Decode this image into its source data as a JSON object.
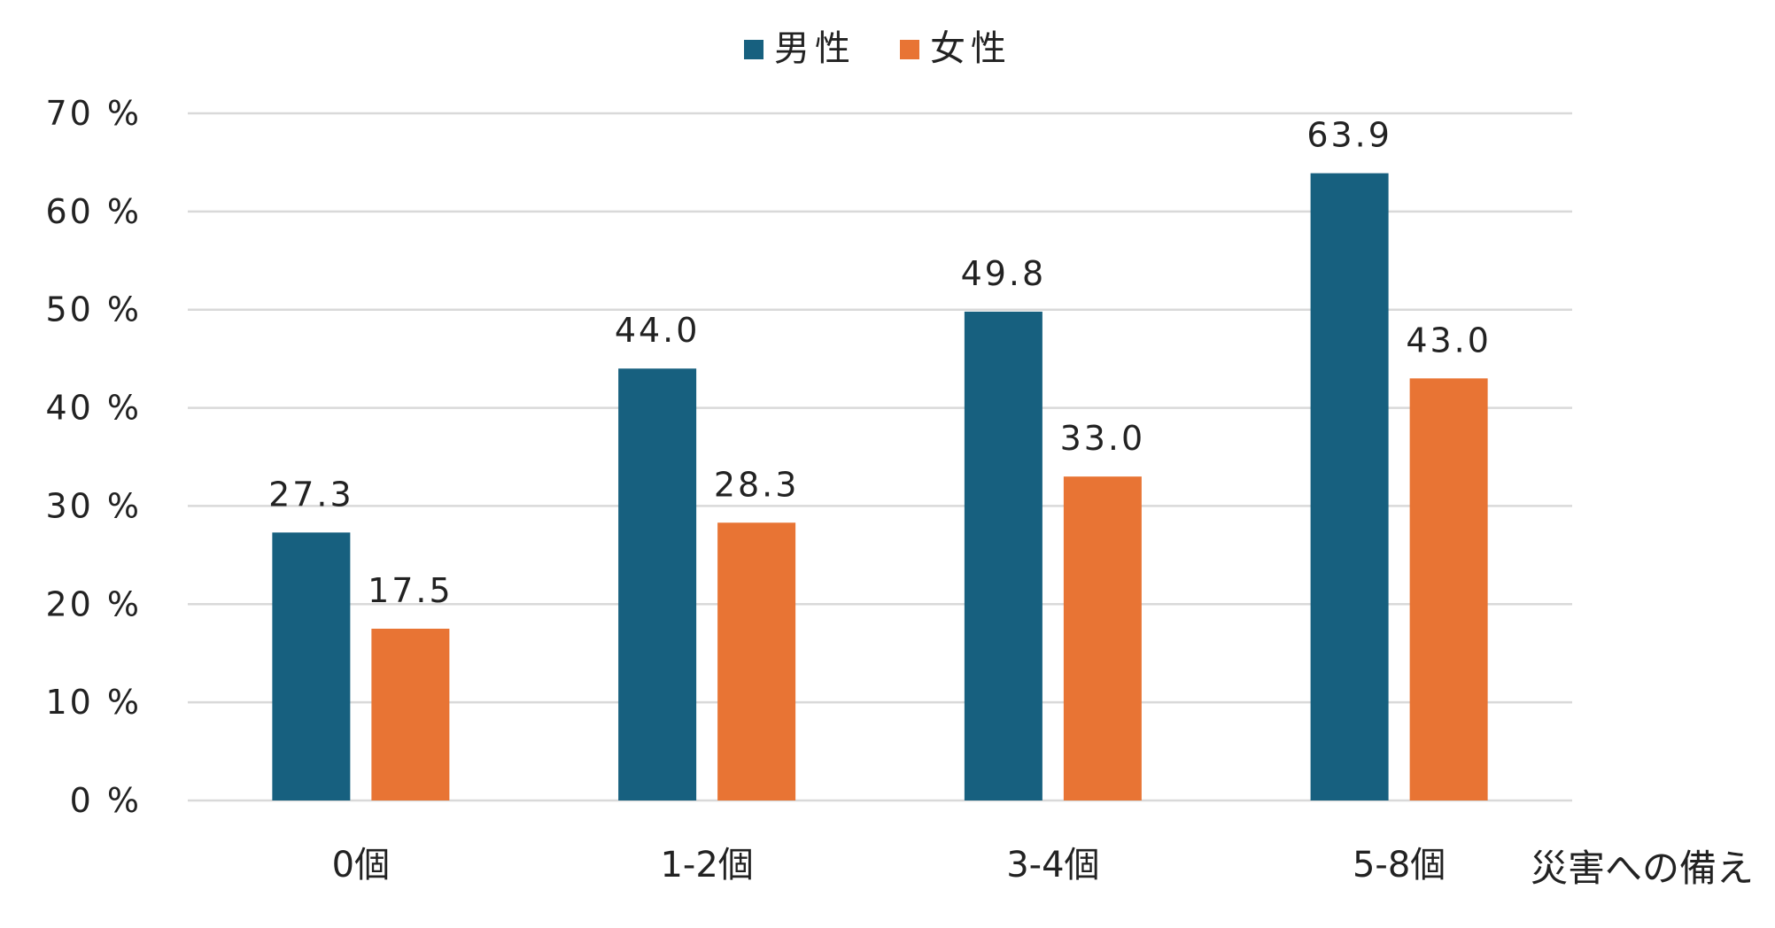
{
  "chart_data": {
    "type": "bar",
    "categories": [
      "0個",
      "1-2個",
      "3-4個",
      "5-8個"
    ],
    "series": [
      {
        "name": "男性",
        "values": [
          27.3,
          44.0,
          49.8,
          63.9
        ],
        "labels": [
          "27.3",
          "44.0",
          "49.8",
          "63.9"
        ],
        "color": "#17607F"
      },
      {
        "name": "女性",
        "values": [
          17.5,
          28.3,
          33.0,
          43.0
        ],
        "labels": [
          "17.5",
          "28.3",
          "33.0",
          "43.0"
        ],
        "color": "#E87434"
      }
    ],
    "yticks": [
      0,
      10,
      20,
      30,
      40,
      50,
      60,
      70
    ],
    "ytick_labels": [
      "0 %",
      "10 %",
      "20 %",
      "30 %",
      "40 %",
      "50 %",
      "60 %",
      "70 %"
    ],
    "ylim": [
      0,
      70
    ],
    "xlabel": "災害への備え",
    "ylabel": "",
    "title": "",
    "grid": true,
    "legend_position": "top-center",
    "grid_color": "#D9D9D9"
  }
}
